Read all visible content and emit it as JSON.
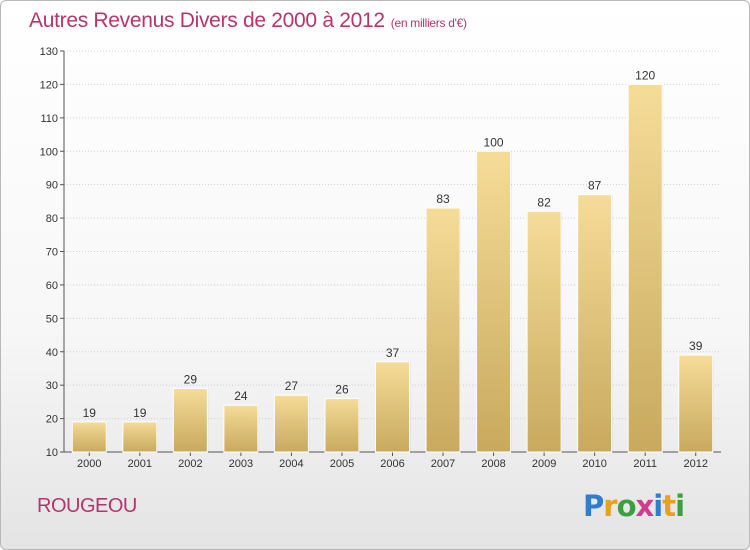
{
  "chart_data": {
    "type": "bar",
    "title": "Autres Revenus Divers de 2000 à 2012",
    "subtitle": "(en milliers d'€)",
    "categories": [
      "2000",
      "2001",
      "2002",
      "2003",
      "2004",
      "2005",
      "2006",
      "2007",
      "2008",
      "2009",
      "2010",
      "2011",
      "2012"
    ],
    "values": [
      19,
      19,
      29,
      24,
      27,
      26,
      37,
      83,
      100,
      82,
      87,
      120,
      39
    ],
    "ylim": [
      10,
      130
    ],
    "yticks": [
      10,
      20,
      30,
      40,
      50,
      60,
      70,
      80,
      90,
      100,
      110,
      120,
      130
    ],
    "grid": true,
    "bar_color": "#e0c47a"
  },
  "commune": "ROUGEOU",
  "logo": {
    "letters": [
      "P",
      "r",
      "o",
      "x",
      "i",
      "t",
      "i"
    ]
  }
}
